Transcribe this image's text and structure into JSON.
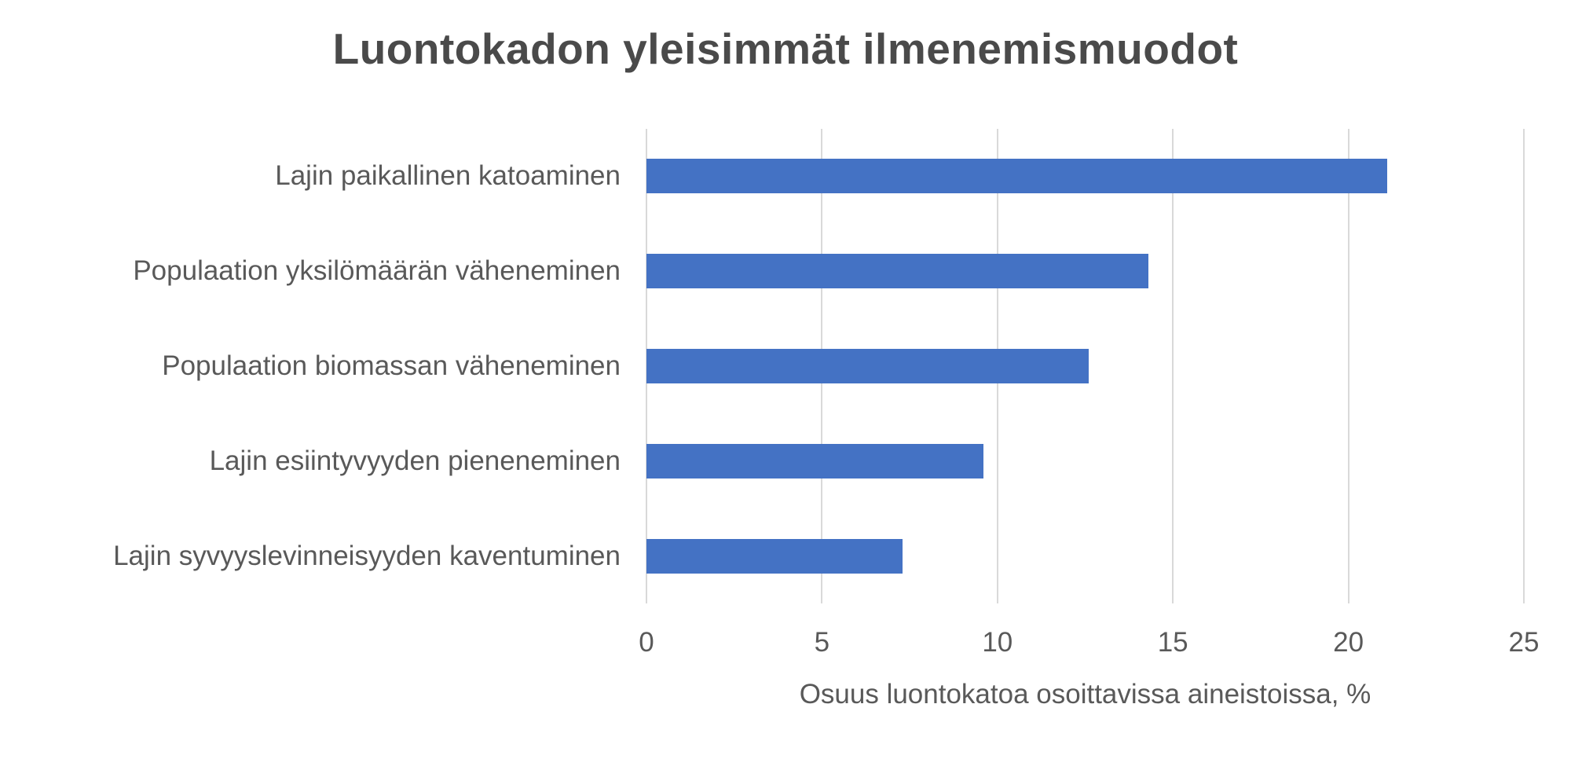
{
  "chart_data": {
    "type": "bar",
    "orientation": "horizontal",
    "title": "Luontokadon yleisimmät ilmenemismuodot",
    "categories": [
      "Lajin paikallinen katoaminen",
      "Populaation yksilömäärän väheneminen",
      "Populaation biomassan väheneminen",
      "Lajin esiintyvyyden pieneneminen",
      "Lajin syvyyslevinneisyyden kaventuminen"
    ],
    "values": [
      21.1,
      14.3,
      12.6,
      9.6,
      7.3
    ],
    "xlabel": "Osuus luontokatoa osoittavissa aineistoissa, %",
    "ylabel": "",
    "xlim": [
      0,
      25
    ],
    "xticks": [
      0,
      5,
      10,
      15,
      20,
      25
    ],
    "grid": "vertical-only",
    "legend": "none",
    "colors": {
      "bar": "#4472C4",
      "gridline": "#D9D9D9",
      "axis_text": "#595959",
      "title_text": "#4A4A4A",
      "background": "#FFFFFF"
    }
  }
}
